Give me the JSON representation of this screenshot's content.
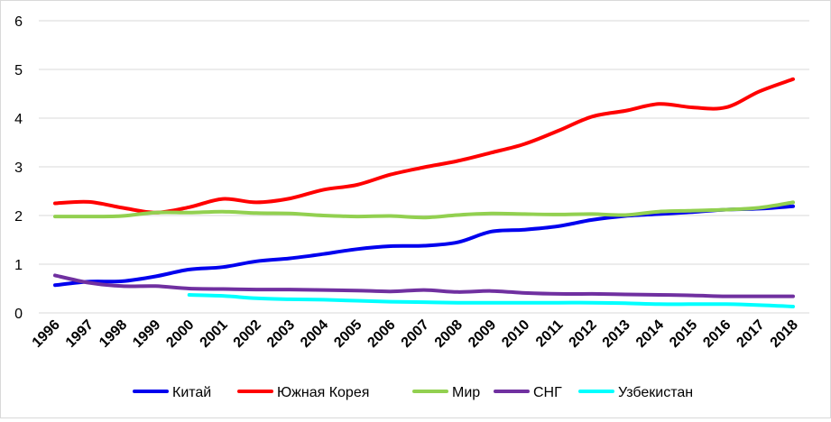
{
  "chart_data": {
    "type": "line",
    "title": "",
    "xlabel": "",
    "ylabel": "",
    "ylim": [
      0,
      6
    ],
    "yticks": [
      "0",
      "1",
      "2",
      "3",
      "4",
      "5",
      "6"
    ],
    "grid": "horizontal",
    "legend_position": "bottom",
    "categories": [
      "1996",
      "1997",
      "1998",
      "1999",
      "2000",
      "2001",
      "2002",
      "2003",
      "2004",
      "2005",
      "2006",
      "2007",
      "2008",
      "2009",
      "2010",
      "2011",
      "2012",
      "2013",
      "2014",
      "2015",
      "2016",
      "2017",
      "2018"
    ],
    "series": [
      {
        "name": "Китай",
        "color": "#0000ee",
        "values": [
          0.57,
          0.64,
          0.65,
          0.75,
          0.89,
          0.94,
          1.06,
          1.12,
          1.21,
          1.31,
          1.37,
          1.38,
          1.45,
          1.67,
          1.71,
          1.78,
          1.91,
          1.99,
          2.03,
          2.07,
          2.12,
          2.14,
          2.19
        ]
      },
      {
        "name": "Южная Корея",
        "color": "#ff0000",
        "values": [
          2.25,
          2.28,
          2.16,
          2.06,
          2.17,
          2.34,
          2.27,
          2.35,
          2.53,
          2.63,
          2.84,
          2.99,
          3.12,
          3.29,
          3.47,
          3.74,
          4.03,
          4.15,
          4.29,
          4.22,
          4.22,
          4.55,
          4.8
        ]
      },
      {
        "name": "Мир",
        "color": "#92d050",
        "values": [
          1.98,
          1.98,
          1.99,
          2.06,
          2.06,
          2.08,
          2.05,
          2.04,
          2.0,
          1.98,
          1.99,
          1.96,
          2.01,
          2.04,
          2.03,
          2.02,
          2.03,
          2.01,
          2.08,
          2.1,
          2.12,
          2.16,
          2.27
        ]
      },
      {
        "name": "СНГ",
        "color": "#7030a0",
        "values": [
          0.77,
          0.62,
          0.55,
          0.55,
          0.5,
          0.49,
          0.48,
          0.48,
          0.47,
          0.46,
          0.44,
          0.47,
          0.43,
          0.45,
          0.41,
          0.39,
          0.39,
          0.38,
          0.37,
          0.36,
          0.34,
          0.34,
          0.34
        ]
      },
      {
        "name": "Узбекистан",
        "color": "#00ffff",
        "values": [
          null,
          null,
          null,
          null,
          0.37,
          0.35,
          0.3,
          0.28,
          0.27,
          0.25,
          0.23,
          0.22,
          0.21,
          0.21,
          0.21,
          0.21,
          0.21,
          0.2,
          0.18,
          0.18,
          0.18,
          0.16,
          0.13
        ]
      }
    ]
  }
}
